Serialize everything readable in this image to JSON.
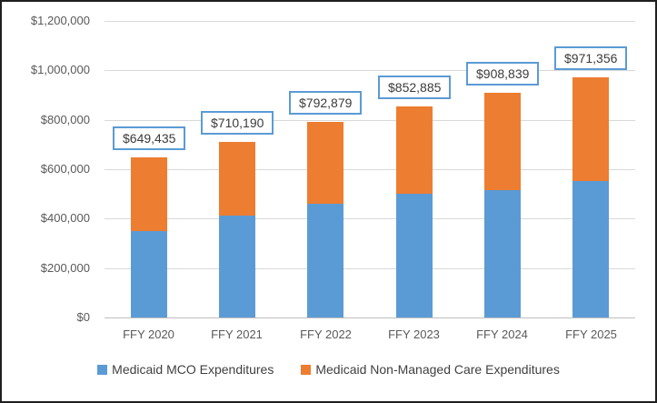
{
  "chart_data": {
    "type": "bar",
    "stacked": true,
    "title": "",
    "xlabel": "",
    "ylabel": "",
    "categories": [
      "FFY 2020",
      "FFY 2021",
      "FFY 2022",
      "FFY 2023",
      "FFY 2024",
      "FFY 2025"
    ],
    "series": [
      {
        "name": "Medicaid MCO Expenditures",
        "color": "#5b9bd5",
        "values": [
          350000,
          413000,
          460000,
          500000,
          515000,
          551000
        ]
      },
      {
        "name": "Medicaid Non-Managed Care Expenditures",
        "color": "#ed7d31",
        "values": [
          299435,
          297190,
          332879,
          352885,
          393839,
          420356
        ]
      }
    ],
    "totals": [
      649435,
      710190,
      792879,
      852885,
      908839,
      971356
    ],
    "total_labels": [
      "$649,435",
      "$710,190",
      "$792,879",
      "$852,885",
      "$908,839",
      "$971,356"
    ],
    "y_axis": {
      "min": 0,
      "max": 1200000,
      "step": 200000,
      "tick_labels": [
        "$0",
        "$200,000",
        "$400,000",
        "$600,000",
        "$800,000",
        "$1,000,000",
        "$1,200,000"
      ]
    },
    "ylim": [
      0,
      1200000
    ],
    "grid": true,
    "legend_position": "bottom",
    "data_label_box_border_color": "#5b9bd5"
  },
  "colors": {
    "mco_blue": "#5b9bd5",
    "non_managed_orange": "#ed7d31",
    "gridline": "#d9d9d9",
    "axis_line": "#bfbfbf",
    "axis_text": "#595959",
    "frame_border": "#1f1f1f"
  }
}
